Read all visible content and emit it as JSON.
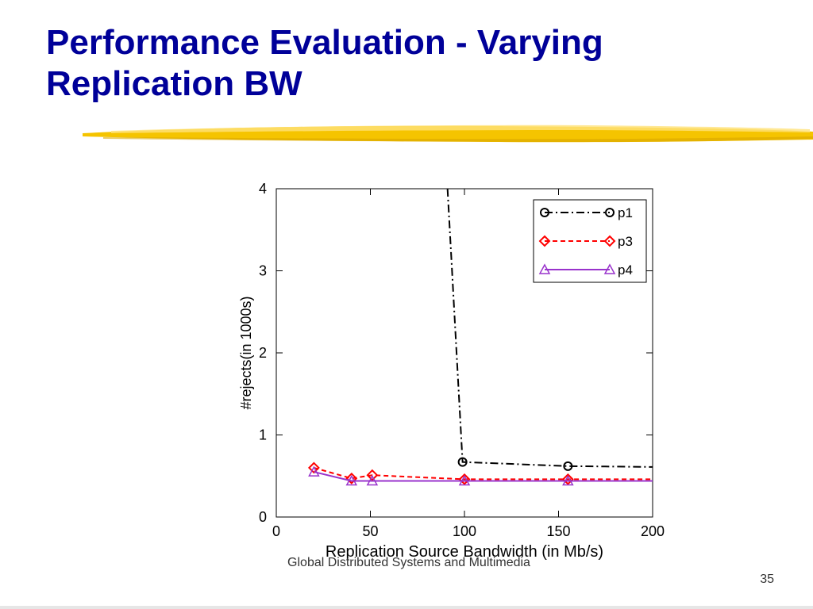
{
  "slide": {
    "title": "Performance Evaluation - Varying Replication BW",
    "footer_text": "Global Distributed Systems and Multimedia",
    "page_number": "35"
  },
  "chart_data": {
    "type": "line",
    "title": "",
    "xlabel": "Replication Source Bandwidth (in Mb/s)",
    "ylabel": "#rejects(in 1000s)",
    "xlim": [
      0,
      200
    ],
    "ylim": [
      0,
      4
    ],
    "xticks": [
      0,
      50,
      100,
      150,
      200
    ],
    "yticks": [
      0,
      1,
      2,
      3,
      4
    ],
    "grid": false,
    "legend": "top-right",
    "series": [
      {
        "name": "p1",
        "color": "#000000",
        "marker": "circle",
        "dash": "dash-dot",
        "points": [
          [
            91,
            4.0
          ],
          [
            99,
            0.67
          ],
          [
            155,
            0.62
          ],
          [
            200,
            0.61
          ]
        ],
        "marked": [
          false,
          true,
          true,
          false
        ]
      },
      {
        "name": "p3",
        "color": "#ff0000",
        "marker": "diamond",
        "dash": "dashed",
        "points": [
          [
            20,
            0.6
          ],
          [
            40,
            0.47
          ],
          [
            51,
            0.51
          ],
          [
            100,
            0.46
          ],
          [
            155,
            0.46
          ],
          [
            200,
            0.46
          ]
        ],
        "marked": [
          true,
          true,
          true,
          true,
          true,
          false
        ]
      },
      {
        "name": "p4",
        "color": "#9933cc",
        "marker": "triangle",
        "dash": "solid",
        "points": [
          [
            20,
            0.55
          ],
          [
            40,
            0.44
          ],
          [
            51,
            0.44
          ],
          [
            100,
            0.44
          ],
          [
            155,
            0.44
          ],
          [
            200,
            0.44
          ]
        ],
        "marked": [
          true,
          true,
          true,
          true,
          true,
          false
        ]
      }
    ]
  }
}
